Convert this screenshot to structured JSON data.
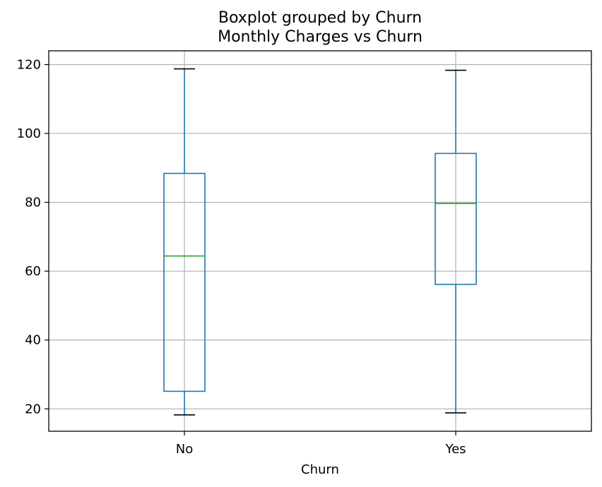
{
  "chart_data": {
    "type": "boxplot",
    "suptitle": "Boxplot grouped by Churn",
    "title": "Monthly Charges vs Churn",
    "xlabel": "Churn",
    "ylabel": "",
    "ylim": [
      13.5,
      124
    ],
    "yticks": [
      20,
      40,
      60,
      80,
      100,
      120
    ],
    "grid": true,
    "categories": [
      "No",
      "Yes"
    ],
    "boxes": [
      {
        "category": "No",
        "whisker_low": 18.25,
        "q1": 25.1,
        "median": 64.4,
        "q3": 88.4,
        "whisker_high": 118.75
      },
      {
        "category": "Yes",
        "whisker_low": 18.85,
        "q1": 56.15,
        "median": 79.65,
        "q3": 94.2,
        "whisker_high": 118.35
      }
    ],
    "colors": {
      "box": "#1f77b4",
      "median": "#2ca02c",
      "cap": "#000000",
      "grid": "#b0b0b0"
    }
  }
}
